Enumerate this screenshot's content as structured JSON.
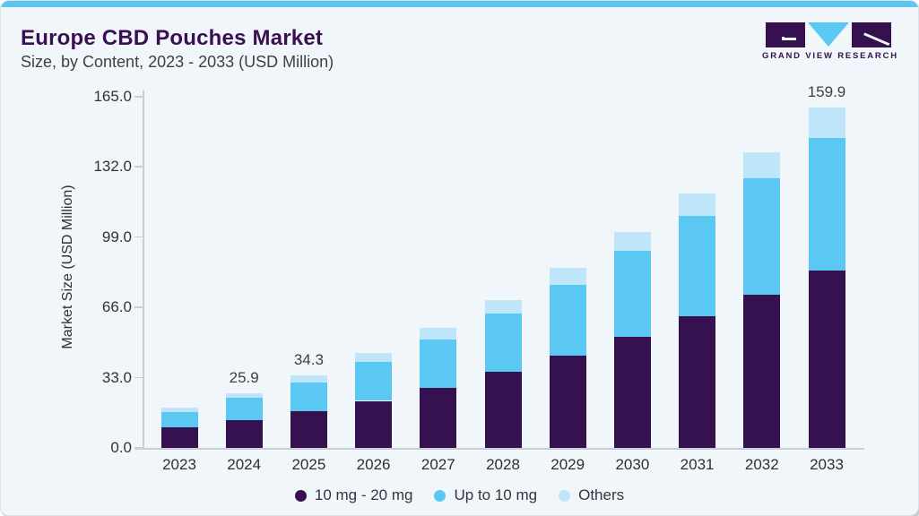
{
  "header": {
    "title": "Europe CBD Pouches Market",
    "subtitle": "Size, by Content, 2023 - 2033 (USD Million)"
  },
  "logo": {
    "name": "Grand View Research",
    "caption": "GRAND VIEW RESEARCH"
  },
  "chart_data": {
    "type": "bar",
    "stacked": true,
    "orientation": "vertical",
    "title": "Europe CBD Pouches Market Size, by Content, 2023 - 2033 (USD Million)",
    "xlabel": "",
    "ylabel": "Market Size (USD Million)",
    "ylim": [
      0,
      165
    ],
    "yticks": [
      0,
      33,
      66,
      99,
      132,
      165
    ],
    "ytick_labels": [
      "0.0",
      "33.0",
      "66.0",
      "99.0",
      "132.0",
      "165.0"
    ],
    "categories": [
      "2023",
      "2024",
      "2025",
      "2026",
      "2027",
      "2028",
      "2029",
      "2030",
      "2031",
      "2032",
      "2033"
    ],
    "series": [
      {
        "name": "10 mg - 20 mg",
        "color": "#35124F",
        "values": [
          9.8,
          13.2,
          17.4,
          22.1,
          28.4,
          35.6,
          43.2,
          52.2,
          61.9,
          72.1,
          83.5
        ]
      },
      {
        "name": "Up to 10 mg",
        "color": "#5BC8F3",
        "values": [
          7.2,
          10.6,
          13.5,
          18.2,
          22.5,
          27.6,
          33.5,
          40.3,
          47.1,
          54.7,
          62.3
        ]
      },
      {
        "name": "Others",
        "color": "#BEE5FA",
        "values": [
          2.1,
          2.1,
          3.4,
          4.2,
          5.5,
          6.4,
          8.1,
          8.9,
          10.6,
          12.3,
          14.1
        ]
      }
    ],
    "bar_total_labels": [
      "",
      "25.9",
      "34.3",
      "",
      "",
      "",
      "",
      "",
      "",
      "",
      "159.9"
    ],
    "legend_position": "bottom",
    "grid": false
  },
  "colors": {
    "accent_strip": "#5FC5EF",
    "card_background": "#F1F6FA",
    "title_text": "#3A1053",
    "subtitle_text": "#3F3F44",
    "axis_line": "#C9CFD8",
    "tick_text": "#31323A"
  }
}
